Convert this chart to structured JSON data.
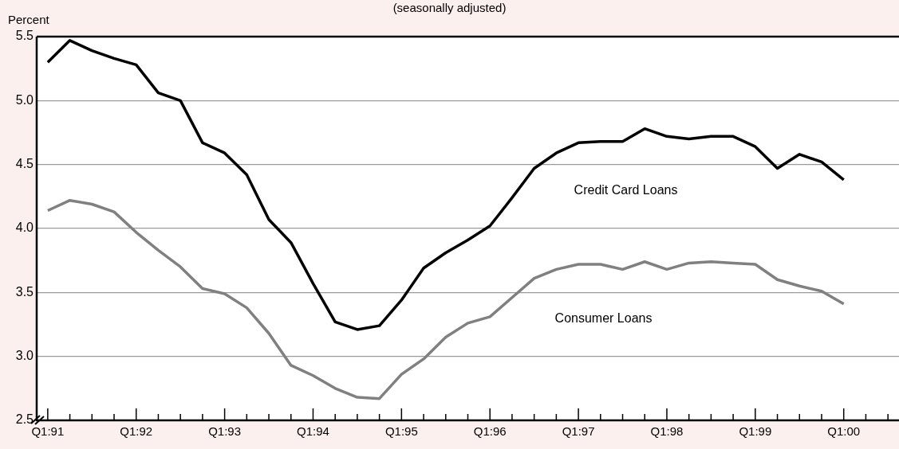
{
  "chart_data": {
    "type": "line",
    "subtitle": "(seasonally adjusted)",
    "ylabel": "Percent",
    "categories": [
      "Q1:91",
      null,
      null,
      null,
      "Q1:92",
      null,
      null,
      null,
      "Q1:93",
      null,
      null,
      null,
      "Q1:94",
      null,
      null,
      null,
      "Q1:95",
      null,
      null,
      null,
      "Q1:96",
      null,
      null,
      null,
      "Q1:97",
      null,
      null,
      null,
      "Q1:98",
      null,
      null,
      null,
      "Q1:99",
      null,
      null,
      null,
      "Q1:00",
      null,
      null
    ],
    "series": [
      {
        "name": "Credit Card Loans",
        "color": "#000000",
        "values": [
          5.3,
          5.47,
          5.39,
          5.33,
          5.28,
          5.06,
          5.0,
          4.67,
          4.59,
          4.42,
          4.07,
          3.89,
          3.57,
          3.27,
          3.21,
          3.24,
          3.44,
          3.69,
          3.81,
          3.91,
          4.02,
          4.24,
          4.47,
          4.59,
          4.67,
          4.68,
          4.68,
          4.78,
          4.72,
          4.7,
          4.72,
          4.72,
          4.64,
          4.47,
          4.58,
          4.52,
          4.38,
          null,
          null
        ]
      },
      {
        "name": "Consumer Loans",
        "color": "#808080",
        "values": [
          4.14,
          4.22,
          4.19,
          4.13,
          3.97,
          3.83,
          3.7,
          3.53,
          3.49,
          3.38,
          3.18,
          2.93,
          2.85,
          2.75,
          2.68,
          2.67,
          2.86,
          2.98,
          3.15,
          3.26,
          3.31,
          3.46,
          3.61,
          3.68,
          3.72,
          3.72,
          3.68,
          3.74,
          3.68,
          3.73,
          3.74,
          3.73,
          3.72,
          3.6,
          3.55,
          3.51,
          3.41,
          null,
          null
        ]
      }
    ],
    "ylim": [
      2.5,
      5.5
    ],
    "yticks": [
      {
        "value": 2.5,
        "label": "2.5"
      },
      {
        "value": 3,
        "label": "3.0"
      },
      {
        "value": 3.5,
        "label": "3.5"
      },
      {
        "value": 4,
        "label": "4.0"
      },
      {
        "value": 4.5,
        "label": "4.5"
      },
      {
        "value": 5,
        "label": "5.0"
      },
      {
        "value": 5.5,
        "label": "5.5"
      }
    ],
    "grid": "y",
    "legend": false,
    "marker": "none",
    "line_style": "solid"
  }
}
